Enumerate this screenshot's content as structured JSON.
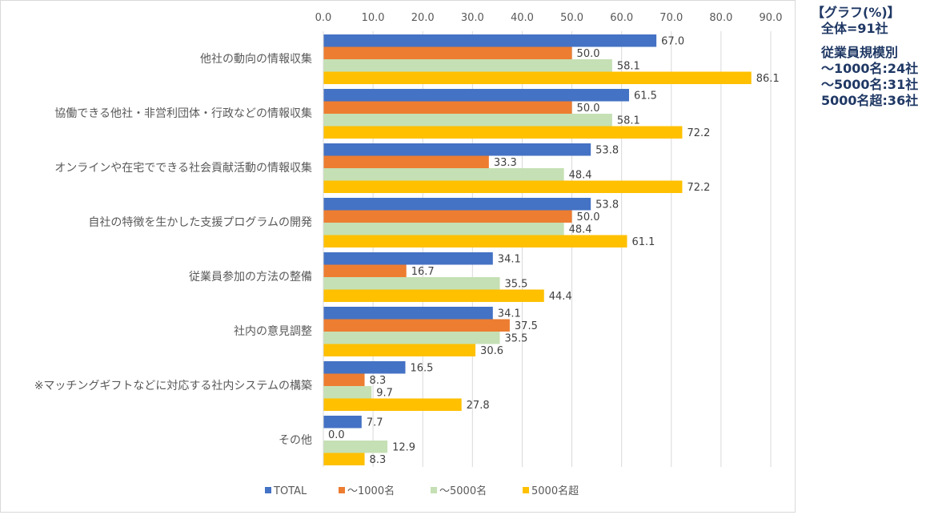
{
  "notes": {
    "graph_unit": "【グラフ(%)】",
    "total": "全体=91社",
    "size_title": "従業員規模別",
    "size_1": "〜1000名:24社",
    "size_2": "〜5000名:31社",
    "size_3": "5000名超:36社"
  },
  "chart_data": {
    "type": "bar",
    "orientation": "horizontal",
    "xlim": [
      0,
      90
    ],
    "ticks": [
      0,
      10,
      20,
      30,
      40,
      50,
      60,
      70,
      80,
      90
    ],
    "tick_labels": [
      "0.0",
      "10.0",
      "20.0",
      "30.0",
      "40.0",
      "50.0",
      "60.0",
      "70.0",
      "80.0",
      "90.0"
    ],
    "axis_position": "top",
    "grid": true,
    "legend_position": "bottom",
    "categories": [
      "他社の動向の情報収集",
      "協働できる他社・非営利団体・行政などの情報収集",
      "オンラインや在宅でできる社会貢献活動の情報収集",
      "自社の特徴を生かした支援プログラムの開発",
      "従業員参加の方法の整備",
      "社内の意見調整",
      "※マッチングギフトなどに対応する社内システムの構築",
      "その他"
    ],
    "series": [
      {
        "name": "TOTAL",
        "color": "#4472c4",
        "values": [
          67.0,
          61.5,
          53.8,
          53.8,
          34.1,
          34.1,
          16.5,
          7.7
        ],
        "labels": [
          "67.0",
          "61.5",
          "53.8",
          "53.8",
          "34.1",
          "34.1",
          "16.5",
          "7.7"
        ]
      },
      {
        "name": "〜1000名",
        "color": "#ed7d31",
        "values": [
          50.0,
          50.0,
          33.3,
          50.0,
          16.7,
          37.5,
          8.3,
          0.0
        ],
        "labels": [
          "50.0",
          "50.0",
          "33.3",
          "50.0",
          "16.7",
          "37.5",
          "8.3",
          "0.0"
        ]
      },
      {
        "name": "〜5000名",
        "color": "#c5e0b4",
        "values": [
          58.1,
          58.1,
          48.4,
          48.4,
          35.5,
          35.5,
          9.7,
          12.9
        ],
        "labels": [
          "58.1",
          "58.1",
          "48.4",
          "48.4",
          "35.5",
          "35.5",
          "9.7",
          "12.9"
        ]
      },
      {
        "name": "5000名超",
        "color": "#ffc000",
        "values": [
          86.1,
          72.2,
          72.2,
          61.1,
          44.4,
          30.6,
          27.8,
          8.3
        ],
        "labels": [
          "86.1",
          "72.2",
          "72.2",
          "61.1",
          "44.4",
          "30.6",
          "27.8",
          "8.3"
        ]
      }
    ]
  }
}
